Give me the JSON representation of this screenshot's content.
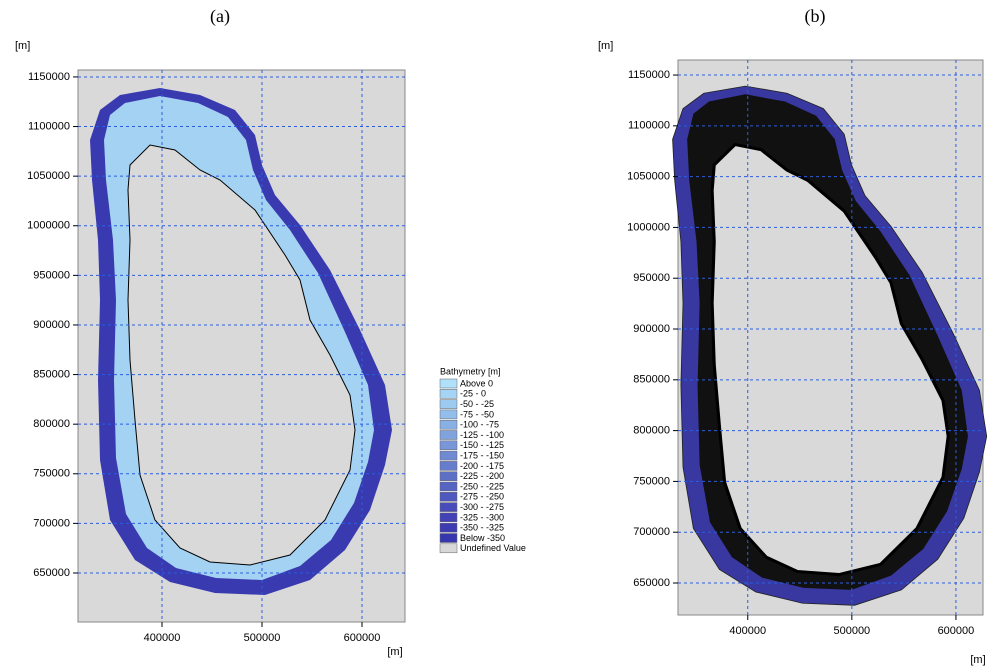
{
  "panels": [
    {
      "label": "(a)",
      "y_unit": "[m]",
      "x_unit": "[m]",
      "xlim": [
        316000,
        643000
      ],
      "ylim": [
        600600,
        1157000
      ],
      "xticks": [
        400000,
        500000,
        600000
      ],
      "yticks": [
        650000,
        700000,
        750000,
        800000,
        850000,
        900000,
        950000,
        1000000,
        1050000,
        1100000,
        1150000
      ]
    },
    {
      "label": "(b)",
      "y_unit": "[m]",
      "x_unit": "[m]",
      "xlim": [
        333000,
        626000
      ],
      "ylim": [
        618500,
        1164800
      ],
      "xticks": [
        400000,
        500000,
        600000
      ],
      "yticks": [
        650000,
        700000,
        750000,
        800000,
        850000,
        900000,
        950000,
        1000000,
        1050000,
        1100000,
        1150000
      ]
    }
  ],
  "legend": {
    "title": "Bathymetry [m]",
    "entries": [
      {
        "label": "Above 0",
        "color": "#b0e0fa"
      },
      {
        "label": "-25 - 0",
        "color": "#a6d4f4"
      },
      {
        "label": "-50 - -25",
        "color": "#9ccaf0"
      },
      {
        "label": "-75 - -50",
        "color": "#93bdea"
      },
      {
        "label": "-100 - -75",
        "color": "#89b0e4"
      },
      {
        "label": "-125 - -100",
        "color": "#80a3de"
      },
      {
        "label": "-150 - -125",
        "color": "#7896d8"
      },
      {
        "label": "-175 - -150",
        "color": "#6f89d2"
      },
      {
        "label": "-200 - -175",
        "color": "#667ccc"
      },
      {
        "label": "-225 - -200",
        "color": "#5e70c6"
      },
      {
        "label": "-250 - -225",
        "color": "#5664c2"
      },
      {
        "label": "-275 - -250",
        "color": "#4f58be"
      },
      {
        "label": "-300 - -275",
        "color": "#484cba"
      },
      {
        "label": "-325 - -300",
        "color": "#4242b6"
      },
      {
        "label": "-350 - -325",
        "color": "#3d3cb2"
      },
      {
        "label": "Below -350",
        "color": "#3636ae"
      },
      {
        "label": "Undefined Value",
        "color": "#d8d8d8"
      }
    ]
  }
}
